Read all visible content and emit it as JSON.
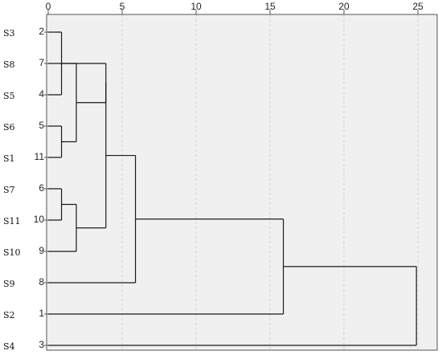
{
  "chart_data": {
    "type": "dendrogram",
    "title": "",
    "xlabel": "",
    "ylabel": "",
    "xlim": [
      0,
      25
    ],
    "x_ticks": [
      0,
      5,
      10,
      15,
      20,
      25
    ],
    "grid": "vertical dashed",
    "leaves": [
      {
        "sample": "S3",
        "num": "2"
      },
      {
        "sample": "S8",
        "num": "7"
      },
      {
        "sample": "S5",
        "num": "4"
      },
      {
        "sample": "S6",
        "num": "5"
      },
      {
        "sample": "S1",
        "num": "11"
      },
      {
        "sample": "S7",
        "num": "6"
      },
      {
        "sample": "S11",
        "num": "10"
      },
      {
        "sample": "S10",
        "num": "9"
      },
      {
        "sample": "S9",
        "num": "8"
      },
      {
        "sample": "S2",
        "num": "1"
      },
      {
        "sample": "S4",
        "num": "3"
      }
    ],
    "merges": [
      {
        "a": "L0",
        "b": "L2",
        "height": 0.9
      },
      {
        "a": "L3",
        "b": "L4",
        "height": 0.9
      },
      {
        "a": "L1",
        "b": "M1",
        "height": 1.9
      },
      {
        "a": "M0",
        "b": "M2",
        "height": 3.9
      },
      {
        "a": "L5",
        "b": "L6",
        "height": 0.9
      },
      {
        "a": "M4",
        "b": "L7",
        "height": 1.9
      },
      {
        "a": "M3",
        "b": "M5",
        "height": 3.9
      },
      {
        "a": "M6",
        "b": "L8",
        "height": 5.9
      },
      {
        "a": "M7",
        "b": "L9",
        "height": 15.9
      },
      {
        "a": "M8",
        "b": "L10",
        "height": 24.9
      }
    ],
    "colors": {
      "background": "#f0f0f0",
      "line": "#1a1a1a",
      "grid": "#cfcfcf"
    }
  }
}
